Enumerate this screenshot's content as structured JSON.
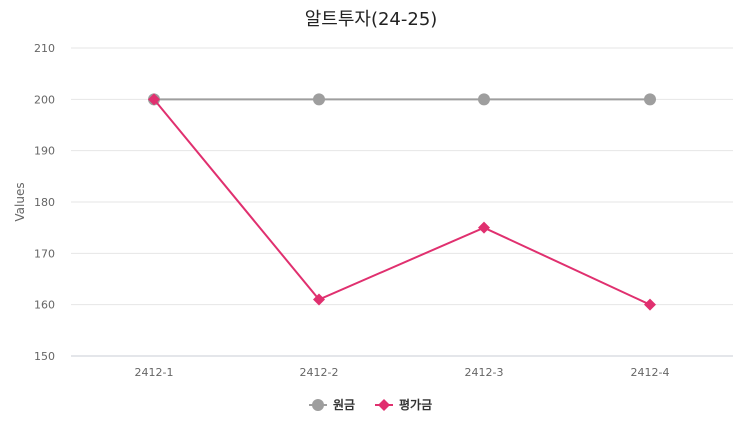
{
  "chart_data": {
    "type": "line",
    "title": "알트투자(24-25)",
    "ylabel": "Values",
    "xlabel": "",
    "categories": [
      "2412-1",
      "2412-2",
      "2412-3",
      "2412-4"
    ],
    "ylim": [
      150,
      210
    ],
    "yticks": [
      150,
      160,
      170,
      180,
      190,
      200,
      210
    ],
    "grid": true,
    "legend_position": "bottom",
    "series": [
      {
        "name": "원금",
        "values": [
          200,
          200,
          200,
          200
        ],
        "color": "#9e9e9e",
        "marker": "circle"
      },
      {
        "name": "평가금",
        "values": [
          200,
          161,
          175,
          160
        ],
        "color": "#e0306f",
        "marker": "diamond"
      }
    ]
  }
}
